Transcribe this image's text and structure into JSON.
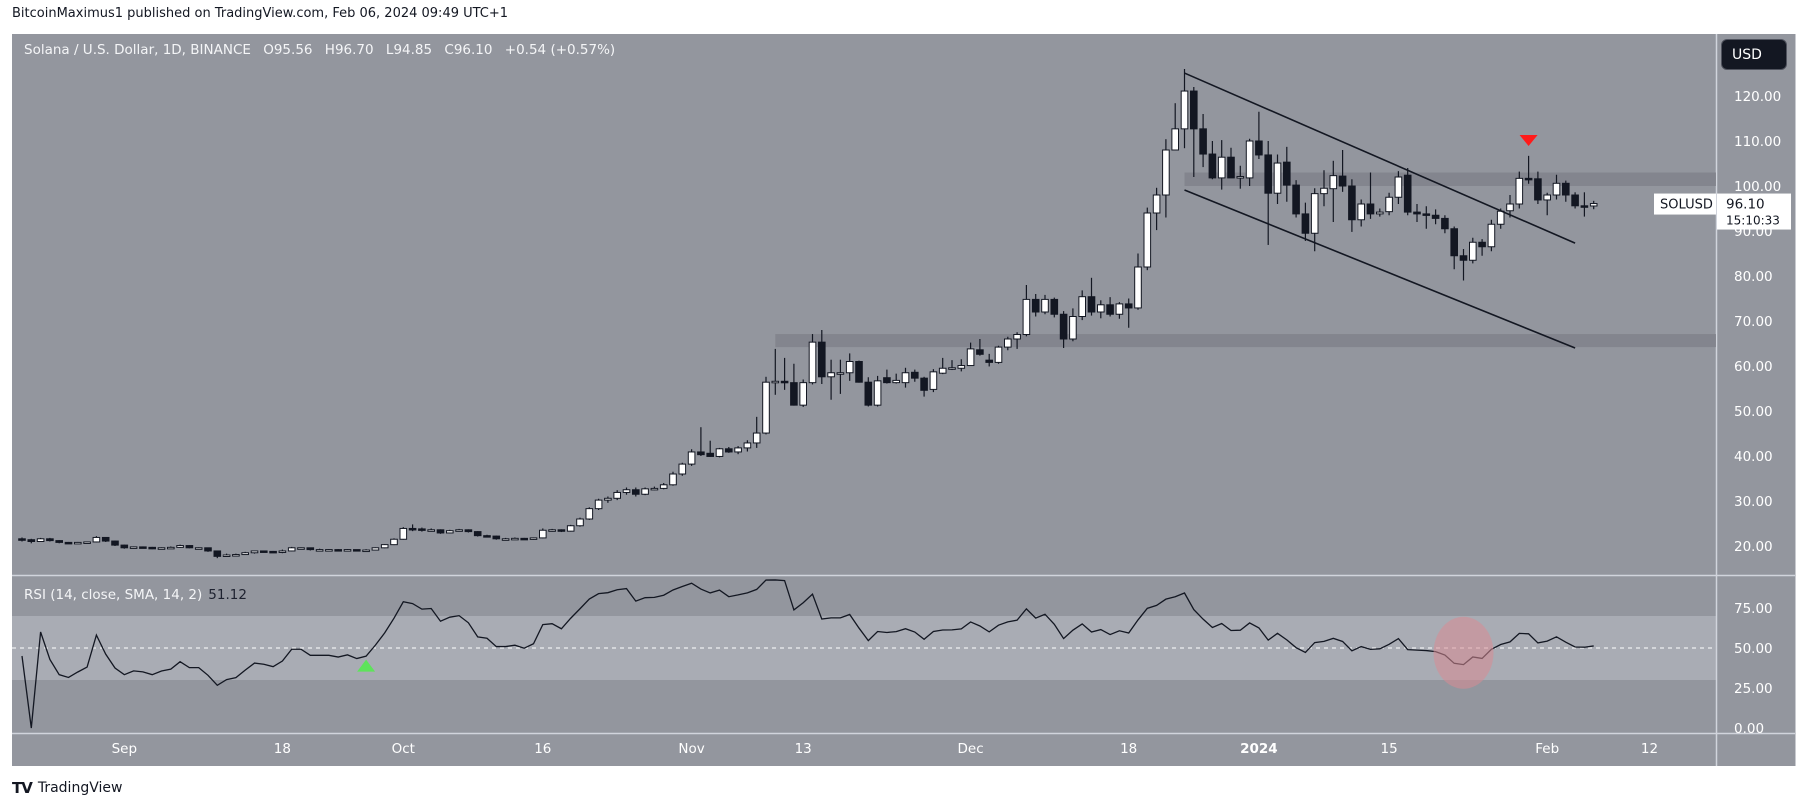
{
  "publish_line": "BitcoinMaximus1 published on TradingView.com, Feb 06, 2024 09:49 UTC+1",
  "legend": {
    "symbol": "Solana / U.S. Dollar, 1D, BINANCE",
    "o_label": "O",
    "o": "95.56",
    "h_label": "H",
    "h": "96.70",
    "l_label": "L",
    "l": "94.85",
    "c_label": "C",
    "c": "96.10",
    "change": "+0.54 (+0.57%)"
  },
  "currency_button": "USD",
  "last_price": {
    "symbol": "SOLUSD",
    "price": "96.10",
    "countdown": "15:10:33"
  },
  "rsi_pane": {
    "title": "RSI (14, close, SMA, 14, 2)",
    "value": "51.12"
  },
  "footer": {
    "logo": "TV",
    "brand": "TradingView"
  },
  "colors": {
    "background": "#93969e",
    "rsi_band": "#a9acb4",
    "zone": "#80838b",
    "bull_body": "#ffffff",
    "bear_body": "#131722",
    "trendline": "#131722",
    "sell_marker": "#ff1a1a",
    "buy_marker": "#5ee35a",
    "rsi_highlight": "#d98c94"
  },
  "chart_data": {
    "type": "candlestick",
    "interval": "1D",
    "x_start": "2023-08-21",
    "ylim": [
      15,
      128
    ],
    "y_ticks": [
      "120.00",
      "110.00",
      "100.00",
      "90.00",
      "80.00",
      "70.00",
      "60.00",
      "50.00",
      "40.00",
      "30.00",
      "20.00"
    ],
    "x_ticks": [
      {
        "label": "Sep",
        "date": "2023-09-01"
      },
      {
        "label": "18",
        "date": "2023-09-18"
      },
      {
        "label": "Oct",
        "date": "2023-10-01"
      },
      {
        "label": "16",
        "date": "2023-10-16"
      },
      {
        "label": "Nov",
        "date": "2023-11-01"
      },
      {
        "label": "13",
        "date": "2023-11-13"
      },
      {
        "label": "Dec",
        "date": "2023-12-01"
      },
      {
        "label": "18",
        "date": "2023-12-18"
      },
      {
        "label": "2024",
        "date": "2024-01-01",
        "bold": true
      },
      {
        "label": "15",
        "date": "2024-01-15"
      },
      {
        "label": "Feb",
        "date": "2024-02-01"
      },
      {
        "label": "12",
        "date": "2024-02-12"
      }
    ],
    "ohlc_fields": [
      "open",
      "high",
      "low",
      "close"
    ],
    "candles": [
      [
        21.6,
        21.9,
        21.0,
        21.4
      ],
      [
        21.4,
        21.6,
        20.6,
        21.0
      ],
      [
        21.0,
        21.8,
        20.9,
        21.6
      ],
      [
        21.6,
        21.8,
        21.0,
        21.2
      ],
      [
        21.2,
        21.3,
        20.6,
        20.8
      ],
      [
        20.8,
        20.9,
        20.6,
        20.7
      ],
      [
        20.7,
        20.9,
        20.6,
        20.8
      ],
      [
        20.8,
        21.0,
        20.6,
        20.9
      ],
      [
        20.9,
        22.2,
        20.8,
        21.9
      ],
      [
        21.9,
        22.0,
        20.9,
        21.1
      ],
      [
        21.1,
        21.2,
        20.0,
        20.2
      ],
      [
        20.2,
        20.3,
        19.4,
        19.6
      ],
      [
        19.6,
        19.9,
        19.5,
        19.8
      ],
      [
        19.8,
        19.9,
        19.5,
        19.7
      ],
      [
        19.7,
        19.8,
        19.3,
        19.4
      ],
      [
        19.4,
        19.7,
        19.3,
        19.6
      ],
      [
        19.6,
        19.9,
        19.4,
        19.7
      ],
      [
        19.7,
        20.3,
        19.6,
        20.1
      ],
      [
        20.1,
        20.2,
        19.5,
        19.6
      ],
      [
        19.6,
        19.7,
        19.5,
        19.6
      ],
      [
        19.6,
        19.6,
        18.7,
        18.9
      ],
      [
        18.9,
        19.0,
        17.3,
        17.7
      ],
      [
        17.7,
        18.3,
        17.6,
        18.0
      ],
      [
        18.0,
        18.3,
        17.9,
        18.1
      ],
      [
        18.1,
        18.7,
        18.0,
        18.5
      ],
      [
        18.5,
        19.0,
        18.3,
        18.9
      ],
      [
        18.9,
        19.0,
        18.7,
        18.8
      ],
      [
        18.8,
        18.9,
        18.5,
        18.6
      ],
      [
        18.6,
        19.2,
        18.4,
        18.9
      ],
      [
        18.9,
        19.8,
        18.8,
        19.6
      ],
      [
        19.6,
        19.7,
        19.4,
        19.6
      ],
      [
        19.6,
        19.6,
        19.0,
        19.2
      ],
      [
        19.2,
        19.4,
        19.1,
        19.2
      ],
      [
        19.2,
        19.3,
        19.1,
        19.2
      ],
      [
        19.2,
        19.3,
        18.9,
        19.1
      ],
      [
        19.1,
        19.3,
        18.9,
        19.2
      ],
      [
        19.2,
        19.2,
        18.9,
        19.0
      ],
      [
        19.0,
        19.3,
        18.9,
        19.1
      ],
      [
        19.1,
        19.7,
        19.0,
        19.6
      ],
      [
        19.6,
        20.4,
        19.5,
        20.3
      ],
      [
        20.3,
        21.7,
        20.2,
        21.5
      ],
      [
        21.5,
        24.2,
        21.4,
        23.9
      ],
      [
        23.9,
        24.8,
        23.3,
        23.8
      ],
      [
        23.8,
        24.1,
        23.2,
        23.5
      ],
      [
        23.5,
        23.9,
        23.2,
        23.6
      ],
      [
        23.6,
        23.7,
        22.7,
        22.9
      ],
      [
        22.9,
        23.6,
        22.8,
        23.4
      ],
      [
        23.4,
        23.8,
        23.2,
        23.6
      ],
      [
        23.6,
        23.7,
        23.0,
        23.2
      ],
      [
        23.2,
        23.3,
        22.1,
        22.3
      ],
      [
        22.3,
        22.5,
        22.0,
        22.2
      ],
      [
        22.2,
        22.3,
        21.4,
        21.6
      ],
      [
        21.6,
        21.8,
        21.4,
        21.6
      ],
      [
        21.6,
        21.9,
        21.5,
        21.7
      ],
      [
        21.7,
        21.8,
        21.4,
        21.5
      ],
      [
        21.5,
        21.9,
        21.4,
        21.8
      ],
      [
        21.8,
        23.9,
        21.7,
        23.5
      ],
      [
        23.5,
        23.8,
        23.2,
        23.6
      ],
      [
        23.6,
        23.7,
        23.1,
        23.3
      ],
      [
        23.3,
        24.7,
        23.2,
        24.5
      ],
      [
        24.5,
        26.3,
        24.3,
        26.0
      ],
      [
        26.0,
        28.6,
        25.8,
        28.3
      ],
      [
        28.3,
        30.5,
        28.0,
        30.2
      ],
      [
        30.2,
        31.0,
        29.6,
        30.6
      ],
      [
        30.6,
        32.4,
        30.2,
        31.9
      ],
      [
        31.9,
        33.0,
        31.4,
        32.5
      ],
      [
        32.5,
        33.0,
        31.0,
        31.5
      ],
      [
        31.5,
        33.0,
        31.3,
        32.7
      ],
      [
        32.7,
        33.2,
        32.4,
        32.8
      ],
      [
        32.8,
        34.0,
        32.6,
        33.6
      ],
      [
        33.6,
        36.5,
        33.4,
        36.0
      ],
      [
        36.0,
        38.5,
        35.6,
        38.2
      ],
      [
        38.2,
        41.5,
        37.8,
        40.9
      ],
      [
        40.9,
        46.4,
        40.0,
        40.3
      ],
      [
        40.6,
        43.4,
        39.8,
        39.9
      ],
      [
        39.9,
        41.8,
        39.7,
        41.6
      ],
      [
        41.6,
        42.0,
        40.7,
        40.9
      ],
      [
        40.9,
        42.2,
        40.4,
        41.8
      ],
      [
        41.8,
        43.5,
        41.0,
        42.9
      ],
      [
        42.9,
        48.7,
        41.8,
        45.1
      ],
      [
        45.1,
        57.6,
        44.8,
        56.4
      ],
      [
        56.4,
        63.8,
        53.6,
        56.6
      ],
      [
        56.6,
        61.8,
        54.7,
        56.5
      ],
      [
        56.3,
        60.5,
        51.2,
        51.3
      ],
      [
        51.3,
        57.0,
        50.9,
        56.3
      ],
      [
        56.3,
        67.1,
        55.9,
        65.3
      ],
      [
        65.3,
        68.0,
        56.0,
        57.6
      ],
      [
        57.6,
        61.4,
        52.5,
        58.5
      ],
      [
        58.3,
        61.4,
        53.8,
        58.5
      ],
      [
        58.5,
        62.8,
        56.7,
        61.0
      ],
      [
        61.0,
        61.2,
        56.3,
        56.4
      ],
      [
        56.4,
        57.5,
        51.0,
        51.3
      ],
      [
        51.3,
        57.8,
        51.0,
        56.7
      ],
      [
        57.4,
        59.2,
        56.1,
        56.3
      ],
      [
        56.3,
        58.3,
        56.1,
        56.8
      ],
      [
        56.3,
        59.6,
        55.2,
        58.5
      ],
      [
        58.6,
        59.2,
        56.5,
        57.3
      ],
      [
        57.3,
        57.6,
        53.2,
        54.6
      ],
      [
        54.8,
        59.3,
        54.2,
        58.7
      ],
      [
        58.4,
        61.8,
        58.2,
        59.5
      ],
      [
        59.5,
        61.3,
        59.1,
        59.6
      ],
      [
        59.5,
        61.5,
        58.8,
        60.1
      ],
      [
        60.1,
        65.2,
        60.0,
        63.8
      ],
      [
        63.6,
        66.0,
        62.3,
        62.6
      ],
      [
        61.3,
        62.7,
        59.9,
        60.8
      ],
      [
        60.8,
        64.5,
        60.5,
        64.2
      ],
      [
        64.2,
        66.5,
        63.5,
        66.0
      ],
      [
        66.0,
        67.5,
        63.8,
        67.0
      ],
      [
        67.0,
        78.0,
        66.6,
        74.8
      ],
      [
        74.8,
        76.0,
        71.0,
        72.0
      ],
      [
        72.0,
        75.8,
        71.5,
        74.8
      ],
      [
        74.8,
        75.2,
        70.8,
        71.5
      ],
      [
        71.5,
        72.2,
        64.0,
        66.0
      ],
      [
        66.0,
        72.8,
        65.5,
        71.0
      ],
      [
        71.0,
        76.8,
        70.2,
        75.4
      ],
      [
        75.4,
        79.6,
        71.2,
        72.0
      ],
      [
        72.0,
        74.6,
        70.6,
        73.6
      ],
      [
        73.6,
        75.3,
        71.0,
        71.5
      ],
      [
        71.5,
        74.2,
        70.5,
        73.8
      ],
      [
        73.8,
        75.0,
        68.5,
        72.9
      ],
      [
        72.9,
        85.0,
        72.5,
        82.0
      ],
      [
        82.0,
        95.2,
        81.3,
        94.0
      ],
      [
        94.0,
        99.6,
        90.2,
        98.0
      ],
      [
        98.0,
        110.4,
        93.0,
        108.0
      ],
      [
        108.0,
        118.4,
        108.0,
        112.7
      ],
      [
        112.7,
        126.0,
        108.4,
        121.1
      ],
      [
        121.1,
        122.0,
        102.0,
        112.7
      ],
      [
        112.7,
        116.0,
        104.2,
        107.1
      ],
      [
        107.1,
        110.0,
        101.5,
        101.8
      ],
      [
        101.8,
        110.2,
        99.2,
        106.4
      ],
      [
        106.4,
        108.5,
        102.0,
        101.8
      ],
      [
        101.8,
        104.5,
        99.4,
        102.1
      ],
      [
        101.8,
        110.5,
        100.0,
        110.0
      ],
      [
        110.0,
        116.5,
        106.0,
        106.9
      ],
      [
        106.9,
        110.0,
        86.9,
        98.4
      ],
      [
        98.4,
        107.0,
        96.0,
        105.1
      ],
      [
        105.3,
        108.7,
        96.5,
        100.2
      ],
      [
        100.2,
        101.3,
        93.0,
        93.8
      ],
      [
        93.8,
        96.3,
        87.8,
        89.5
      ],
      [
        89.5,
        99.5,
        85.5,
        98.3
      ],
      [
        98.3,
        103.5,
        95.5,
        99.5
      ],
      [
        99.4,
        105.6,
        92.0,
        102.3
      ],
      [
        102.2,
        108.0,
        98.7,
        100.0
      ],
      [
        100.0,
        101.5,
        89.8,
        92.5
      ],
      [
        92.5,
        97.0,
        91.0,
        96.0
      ],
      [
        96.0,
        103.0,
        92.7,
        93.8
      ],
      [
        93.8,
        95.0,
        93.2,
        94.2
      ],
      [
        94.3,
        98.5,
        93.5,
        97.5
      ],
      [
        97.5,
        103.3,
        96.0,
        102.0
      ],
      [
        102.4,
        104.0,
        93.5,
        94.2
      ],
      [
        94.2,
        96.0,
        92.0,
        93.8
      ],
      [
        93.8,
        95.5,
        90.5,
        93.5
      ],
      [
        93.5,
        94.8,
        91.5,
        92.8
      ],
      [
        92.8,
        93.5,
        89.5,
        90.5
      ],
      [
        90.5,
        91.0,
        81.5,
        84.5
      ],
      [
        84.5,
        86.0,
        79.0,
        83.5
      ],
      [
        83.5,
        88.5,
        82.8,
        87.5
      ],
      [
        87.5,
        88.2,
        84.5,
        86.5
      ],
      [
        86.5,
        92.5,
        85.5,
        91.5
      ],
      [
        91.5,
        95.0,
        90.5,
        94.4
      ],
      [
        94.5,
        98.0,
        93.0,
        96.0
      ],
      [
        96.0,
        103.2,
        95.0,
        101.7
      ],
      [
        101.7,
        106.7,
        100.5,
        101.5
      ],
      [
        101.6,
        103.2,
        96.0,
        96.9
      ],
      [
        96.9,
        98.5,
        93.5,
        98.0
      ],
      [
        98.0,
        102.5,
        97.0,
        100.6
      ],
      [
        100.6,
        101.2,
        96.5,
        98.0
      ],
      [
        98.0,
        98.6,
        95.0,
        95.6
      ],
      [
        95.6,
        98.6,
        93.2,
        95.5
      ],
      [
        95.56,
        96.7,
        94.85,
        96.1
      ]
    ],
    "zones": [
      {
        "name": "resistance-zone",
        "from": "2023-12-24",
        "price": [
          100,
          103
        ]
      },
      {
        "name": "support-zone",
        "from": "2023-11-10",
        "price": [
          64.2,
          67.1
        ]
      }
    ],
    "trendlines": [
      {
        "name": "channel-upper-line",
        "from": [
          "2023-12-24",
          125.1
        ],
        "to": [
          "2024-02-04",
          87.3
        ]
      },
      {
        "name": "channel-lower-line",
        "from": [
          "2023-12-24",
          99.1
        ],
        "to": [
          "2024-02-04",
          64.0
        ]
      }
    ],
    "markers": [
      {
        "name": "sell-marker",
        "shape": "triangle-down",
        "date": "2024-01-30",
        "price": 110
      }
    ],
    "rsi": {
      "length": 14,
      "source": "close",
      "last_value": 51.12,
      "ylim": [
        0,
        95
      ],
      "band": [
        30,
        70
      ],
      "midline": 50,
      "y_ticks": [
        "75.00",
        "50.00",
        "25.00",
        "0.00"
      ],
      "markers": [
        {
          "name": "buy-marker",
          "shape": "triangle-up",
          "date": "2023-09-27",
          "rsi": 39
        },
        {
          "name": "rsi-highlight-circle",
          "shape": "ellipse",
          "date": "2024-01-23",
          "rsi": 47
        }
      ]
    }
  }
}
